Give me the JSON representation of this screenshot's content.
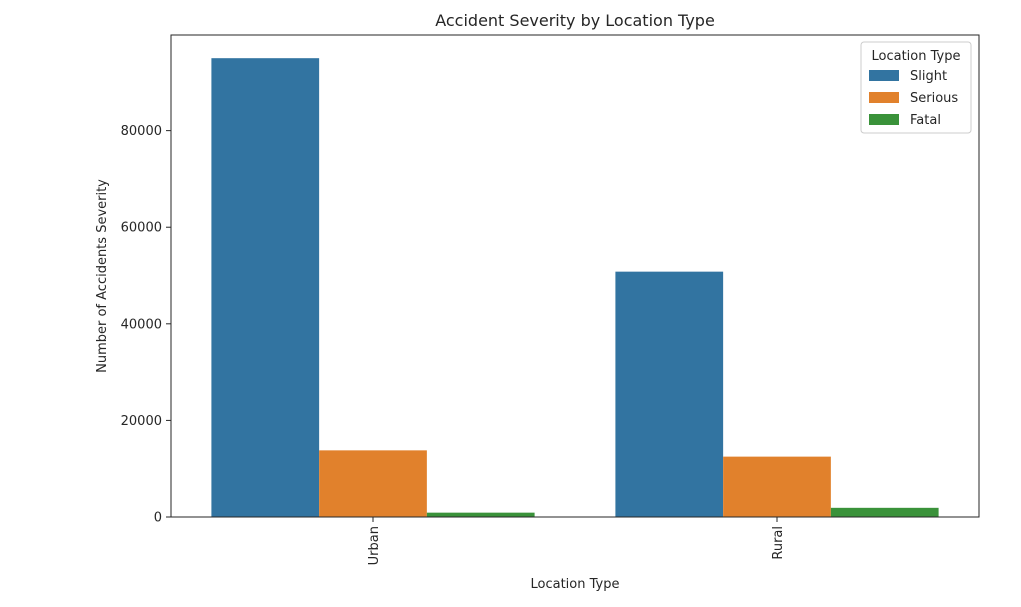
{
  "chart_data": {
    "type": "bar",
    "title": "Accident Severity by Location Type",
    "xlabel": "Location Type",
    "ylabel": "Number of Accidents Severity",
    "categories": [
      "Urban",
      "Rural"
    ],
    "series": [
      {
        "name": "Slight",
        "color": "#3274a1",
        "values": [
          95000,
          50800
        ]
      },
      {
        "name": "Serious",
        "color": "#e1812c",
        "values": [
          13800,
          12500
        ]
      },
      {
        "name": "Fatal",
        "color": "#3a923a",
        "values": [
          900,
          1900
        ]
      }
    ],
    "ylim": [
      0,
      99800
    ],
    "yticks": [
      0,
      20000,
      40000,
      60000,
      80000
    ],
    "ytick_labels": [
      "0",
      "20000",
      "40000",
      "60000",
      "80000"
    ],
    "grid": false,
    "legend": {
      "title": "Location Type",
      "placement": "top-right"
    }
  }
}
